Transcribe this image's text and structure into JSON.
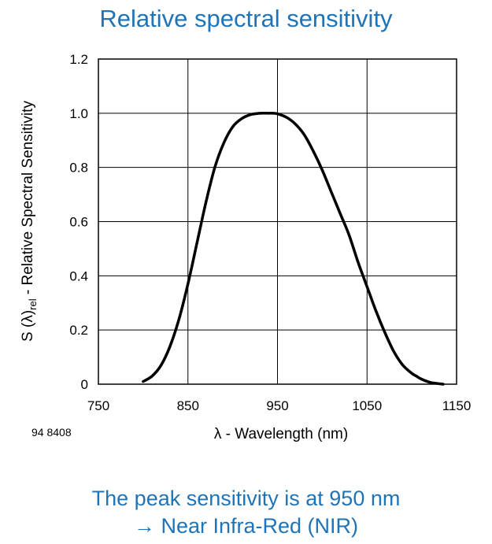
{
  "title": "Relative spectral sensitivity",
  "figure_ref": "94 8408",
  "caption": {
    "line1": "The peak sensitivity is at 950 nm",
    "line2": "→ Near Infra-Red (NIR)"
  },
  "chart_data": {
    "type": "line",
    "xlabel": "λ - Wavelength (nm)",
    "ylabel": "S (λ)",
    "ylabel_subscript": "rel",
    "ylabel_suffix": " - Relative Spectral Sensitivity",
    "xlim": [
      750,
      1150
    ],
    "ylim": [
      0,
      1.2
    ],
    "x_ticks": [
      750,
      850,
      950,
      1050,
      1150
    ],
    "x_tick_labels": [
      "750",
      "850",
      "950",
      "1050",
      "1150"
    ],
    "y_ticks": [
      0,
      0.2,
      0.4,
      0.6,
      0.8,
      1.0,
      1.2
    ],
    "y_tick_labels": [
      "0",
      "0.2",
      "0.4",
      "0.6",
      "0.8",
      "1.0",
      "1.2"
    ],
    "grid": true,
    "series": [
      {
        "color": "#000000",
        "x": [
          800,
          810,
          820,
          830,
          840,
          850,
          860,
          870,
          880,
          890,
          900,
          910,
          920,
          930,
          940,
          945,
          950,
          960,
          970,
          980,
          990,
          1000,
          1010,
          1020,
          1030,
          1040,
          1050,
          1060,
          1070,
          1080,
          1090,
          1100,
          1105,
          1110,
          1120,
          1130,
          1135
        ],
        "y": [
          0.01,
          0.03,
          0.07,
          0.14,
          0.24,
          0.37,
          0.52,
          0.67,
          0.8,
          0.89,
          0.95,
          0.98,
          0.995,
          1.0,
          1.0,
          1.0,
          0.998,
          0.985,
          0.96,
          0.92,
          0.86,
          0.79,
          0.71,
          0.63,
          0.55,
          0.45,
          0.36,
          0.27,
          0.19,
          0.12,
          0.07,
          0.04,
          0.03,
          0.02,
          0.007,
          0.002,
          0.0
        ]
      }
    ]
  }
}
